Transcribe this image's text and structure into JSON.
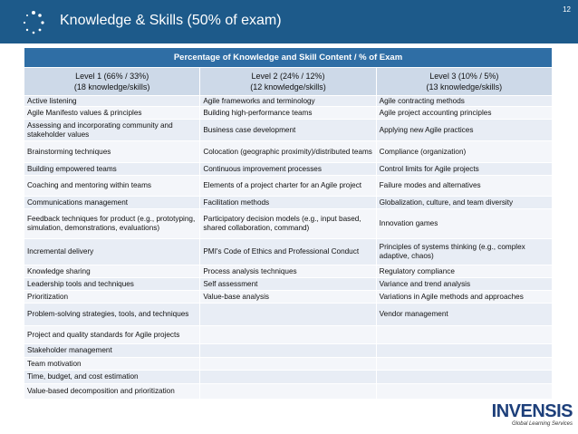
{
  "header": {
    "title": "Knowledge & Skills (50% of exam)",
    "page_number": "12"
  },
  "table": {
    "caption": "Percentage of Knowledge and Skill Content / % of Exam",
    "columns": [
      {
        "level": "Level 1 (66% / 33%)",
        "detail": "(18 knowledge/skills)",
        "items": [
          "Active listening",
          "Agile Manifesto values & principles",
          "Assessing and incorporating community and stakeholder values",
          "Brainstorming techniques",
          "Building empowered teams",
          "Coaching and mentoring within teams",
          "Communications management",
          "Feedback techniques for product (e.g., prototyping, simulation, demonstrations, evaluations)",
          "Incremental delivery",
          "Knowledge sharing",
          "Leadership tools and techniques",
          "Prioritization",
          "Problem-solving strategies, tools, and techniques",
          "Project and quality standards for Agile projects",
          "Stakeholder management",
          "Team motivation",
          "Time, budget, and cost estimation",
          "Value-based decomposition and prioritization"
        ]
      },
      {
        "level": "Level 2 (24% / 12%)",
        "detail": "(12 knowledge/skills)",
        "items": [
          "Agile frameworks and terminology",
          "Building high-performance teams",
          "Business case development",
          "Colocation (geographic proximity)/distributed teams",
          "Continuous improvement processes",
          "Elements of a project charter for an Agile project",
          "Facilitation methods",
          "Participatory decision models (e.g., input based, shared collaboration, command)",
          "PMI's Code of Ethics and Professional Conduct",
          "Process analysis techniques",
          "Self assessment",
          "Value-base analysis"
        ]
      },
      {
        "level": "Level 3 (10% / 5%)",
        "detail": "(13 knowledge/skills)",
        "items": [
          "Agile contracting methods",
          "Agile project accounting principles",
          "Applying new Agile practices",
          "Compliance (organization)",
          "Control limits for Agile projects",
          "Failure modes and alternatives",
          "Globalization, culture, and team diversity",
          "Innovation games",
          "Principles of systems thinking (e.g., complex adaptive, chaos)",
          "Regulatory compliance",
          "Variance and trend analysis",
          "Variations in Agile methods and approaches",
          "Vendor management"
        ]
      }
    ]
  },
  "logo": {
    "name": "INVENSIS",
    "tagline": "Global Learning Services"
  }
}
